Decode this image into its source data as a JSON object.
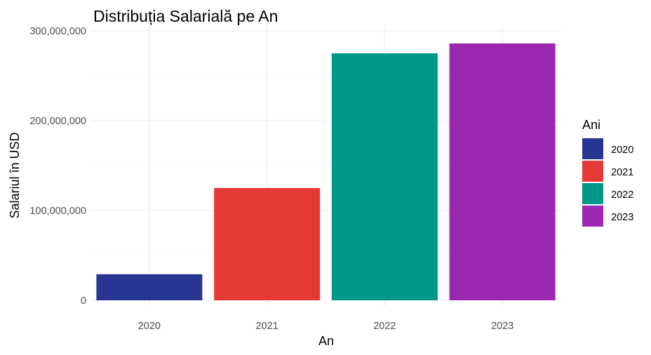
{
  "chart_data": {
    "type": "bar",
    "title": "Distribuția Salarială pe An",
    "xlabel": "An",
    "ylabel": "Salariul în USD",
    "categories": [
      "2020",
      "2021",
      "2022",
      "2023"
    ],
    "values": [
      29000000,
      125000000,
      275000000,
      286000000
    ],
    "colors": [
      "#283593",
      "#E53935",
      "#009688",
      "#9C27B0"
    ],
    "ylim": [
      0,
      300000000
    ],
    "yticks": [
      0,
      100000000,
      200000000,
      300000000
    ],
    "ytick_labels": [
      "0",
      "100,000,000",
      "200,000,000",
      "300,000,000"
    ],
    "grid": true,
    "legend": {
      "title": "Ani",
      "position": "right",
      "entries": [
        "2020",
        "2021",
        "2022",
        "2023"
      ]
    }
  }
}
